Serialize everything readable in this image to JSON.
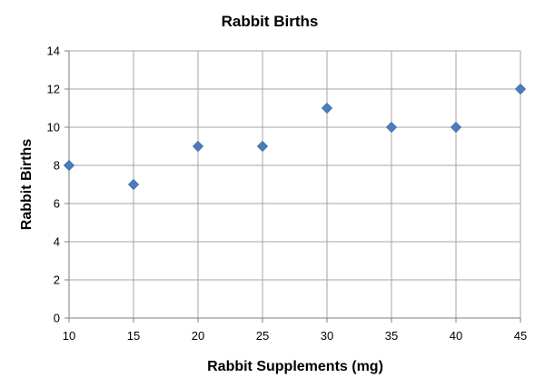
{
  "chart_data": {
    "type": "scatter",
    "title": "Rabbit Births",
    "xlabel": "Rabbit Supplements (mg)",
    "ylabel": "Rabbit Births",
    "xlim": [
      10,
      45
    ],
    "ylim": [
      0,
      14
    ],
    "x_ticks": [
      10,
      15,
      20,
      25,
      30,
      35,
      40,
      45
    ],
    "y_ticks": [
      0,
      2,
      4,
      6,
      8,
      10,
      12,
      14
    ],
    "grid": true,
    "legend": "none",
    "marker": "diamond",
    "colors": {
      "marker_fill": "#4a7ebb",
      "marker_stroke": "#3a6aa5",
      "grid": "#a6a6a6",
      "axis": "#7f7f7f"
    },
    "series": [
      {
        "x": [
          10,
          15,
          20,
          25,
          30,
          35,
          40,
          45
        ],
        "y": [
          8,
          7,
          9,
          9,
          11,
          10,
          10,
          12
        ]
      }
    ]
  }
}
